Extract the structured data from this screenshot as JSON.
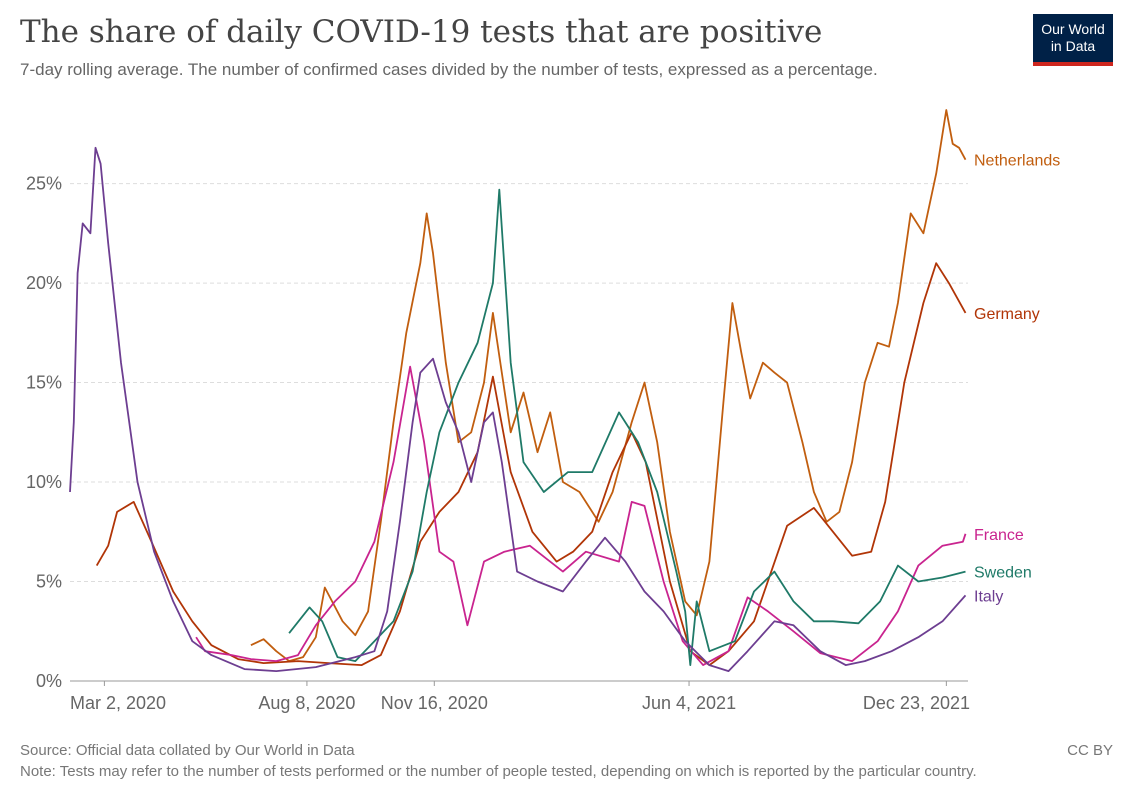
{
  "header": {
    "title": "The share of daily COVID-19 tests that are positive",
    "subtitle": "7-day rolling average. The number of confirmed cases divided by the number of tests, expressed as a percentage."
  },
  "logo": {
    "line1": "Our World",
    "line2": "in Data",
    "bg": "#002147",
    "accent": "#ce261e"
  },
  "footer": {
    "source": "Source: Official data collated by Our World in Data",
    "note": "Note: Tests may refer to the number of tests performed or the number of people tested, depending on which is reported by the particular country.",
    "license": "CC BY"
  },
  "chart_data": {
    "type": "line",
    "title": "The share of daily COVID-19 tests that are positive",
    "xlabel": "",
    "ylabel": "",
    "x_range": [
      "2020-02-04",
      "2022-01-09"
    ],
    "ylim": [
      0,
      29
    ],
    "y_ticks": [
      0,
      5,
      10,
      15,
      20,
      25
    ],
    "y_tick_labels": [
      "0%",
      "5%",
      "10%",
      "15%",
      "20%",
      "25%"
    ],
    "x_ticks": [
      "2020-03-02",
      "2020-08-08",
      "2020-11-16",
      "2021-06-04",
      "2021-12-23"
    ],
    "x_tick_labels": [
      "Mar 2, 2020",
      "Aug 8, 2020",
      "Nov 16, 2020",
      "Jun 4, 2021",
      "Dec 23, 2021"
    ],
    "grid": true,
    "legend": "inline labels at right end",
    "series": [
      {
        "name": "Netherlands",
        "color": "#c15e0f",
        "points": [
          [
            "2020-06-25",
            1.8
          ],
          [
            "2020-07-05",
            2.1
          ],
          [
            "2020-07-15",
            1.5
          ],
          [
            "2020-07-25",
            1.0
          ],
          [
            "2020-08-05",
            1.2
          ],
          [
            "2020-08-15",
            2.2
          ],
          [
            "2020-08-22",
            4.7
          ],
          [
            "2020-09-05",
            3.0
          ],
          [
            "2020-09-15",
            2.3
          ],
          [
            "2020-09-25",
            3.5
          ],
          [
            "2020-10-05",
            8.0
          ],
          [
            "2020-10-15",
            13.0
          ],
          [
            "2020-10-25",
            17.5
          ],
          [
            "2020-11-05",
            21.0
          ],
          [
            "2020-11-10",
            23.5
          ],
          [
            "2020-11-15",
            21.5
          ],
          [
            "2020-11-25",
            16.0
          ],
          [
            "2020-12-05",
            12.0
          ],
          [
            "2020-12-15",
            12.5
          ],
          [
            "2020-12-25",
            15.0
          ],
          [
            "2021-01-01",
            18.5
          ],
          [
            "2021-01-08",
            15.5
          ],
          [
            "2021-01-15",
            12.5
          ],
          [
            "2021-01-25",
            14.5
          ],
          [
            "2021-02-05",
            11.5
          ],
          [
            "2021-02-15",
            13.5
          ],
          [
            "2021-02-25",
            10.0
          ],
          [
            "2021-03-10",
            9.5
          ],
          [
            "2021-03-25",
            8.0
          ],
          [
            "2021-04-05",
            9.5
          ],
          [
            "2021-04-20",
            13.0
          ],
          [
            "2021-04-30",
            15.0
          ],
          [
            "2021-05-10",
            12.0
          ],
          [
            "2021-05-20",
            7.5
          ],
          [
            "2021-06-01",
            4.0
          ],
          [
            "2021-06-10",
            3.3
          ],
          [
            "2021-06-20",
            6.0
          ],
          [
            "2021-07-01",
            14.0
          ],
          [
            "2021-07-08",
            19.0
          ],
          [
            "2021-07-15",
            16.5
          ],
          [
            "2021-07-22",
            14.2
          ],
          [
            "2021-08-01",
            16.0
          ],
          [
            "2021-08-10",
            15.5
          ],
          [
            "2021-08-20",
            15.0
          ],
          [
            "2021-09-01",
            12.0
          ],
          [
            "2021-09-10",
            9.5
          ],
          [
            "2021-09-20",
            8.0
          ],
          [
            "2021-09-30",
            8.5
          ],
          [
            "2021-10-10",
            11.0
          ],
          [
            "2021-10-20",
            15.0
          ],
          [
            "2021-10-30",
            17.0
          ],
          [
            "2021-11-08",
            16.8
          ],
          [
            "2021-11-15",
            19.0
          ],
          [
            "2021-11-25",
            23.5
          ],
          [
            "2021-12-05",
            22.5
          ],
          [
            "2021-12-15",
            25.5
          ],
          [
            "2021-12-23",
            28.7
          ],
          [
            "2021-12-28",
            27.0
          ],
          [
            "2022-01-02",
            26.8
          ],
          [
            "2022-01-07",
            26.2
          ]
        ]
      },
      {
        "name": "Germany",
        "color": "#b13507",
        "points": [
          [
            "2020-02-25",
            5.8
          ],
          [
            "2020-03-05",
            6.8
          ],
          [
            "2020-03-12",
            8.5
          ],
          [
            "2020-03-25",
            9.0
          ],
          [
            "2020-04-08",
            7.0
          ],
          [
            "2020-04-25",
            4.5
          ],
          [
            "2020-05-10",
            3.0
          ],
          [
            "2020-05-25",
            1.8
          ],
          [
            "2020-06-15",
            1.1
          ],
          [
            "2020-07-05",
            0.9
          ],
          [
            "2020-08-01",
            1.0
          ],
          [
            "2020-08-25",
            0.9
          ],
          [
            "2020-09-20",
            0.8
          ],
          [
            "2020-10-05",
            1.3
          ],
          [
            "2020-10-20",
            3.5
          ],
          [
            "2020-11-05",
            7.0
          ],
          [
            "2020-11-20",
            8.5
          ],
          [
            "2020-12-05",
            9.5
          ],
          [
            "2020-12-20",
            11.5
          ],
          [
            "2021-01-01",
            15.3
          ],
          [
            "2021-01-15",
            10.5
          ],
          [
            "2021-02-01",
            7.5
          ],
          [
            "2021-02-20",
            6.0
          ],
          [
            "2021-03-05",
            6.5
          ],
          [
            "2021-03-20",
            7.5
          ],
          [
            "2021-04-05",
            10.5
          ],
          [
            "2021-04-20",
            12.5
          ],
          [
            "2021-05-01",
            11.0
          ],
          [
            "2021-05-20",
            5.0
          ],
          [
            "2021-06-05",
            1.5
          ],
          [
            "2021-06-20",
            0.8
          ],
          [
            "2021-07-05",
            1.5
          ],
          [
            "2021-07-25",
            3.0
          ],
          [
            "2021-08-20",
            7.8
          ],
          [
            "2021-09-10",
            8.7
          ],
          [
            "2021-09-25",
            7.5
          ],
          [
            "2021-10-10",
            6.3
          ],
          [
            "2021-10-25",
            6.5
          ],
          [
            "2021-11-05",
            9.0
          ],
          [
            "2021-11-20",
            15.0
          ],
          [
            "2021-12-05",
            19.0
          ],
          [
            "2021-12-15",
            21.0
          ],
          [
            "2021-12-25",
            20.0
          ],
          [
            "2022-01-07",
            18.5
          ]
        ]
      },
      {
        "name": "France",
        "color": "#c9248f",
        "points": [
          [
            "2020-05-13",
            2.2
          ],
          [
            "2020-05-20",
            1.5
          ],
          [
            "2020-06-10",
            1.3
          ],
          [
            "2020-06-25",
            1.1
          ],
          [
            "2020-07-15",
            1.0
          ],
          [
            "2020-08-01",
            1.3
          ],
          [
            "2020-08-15",
            2.8
          ],
          [
            "2020-08-30",
            4.0
          ],
          [
            "2020-09-15",
            5.0
          ],
          [
            "2020-09-30",
            7.0
          ],
          [
            "2020-10-15",
            11.0
          ],
          [
            "2020-10-28",
            15.8
          ],
          [
            "2020-11-08",
            12.0
          ],
          [
            "2020-11-20",
            6.5
          ],
          [
            "2020-12-01",
            6.0
          ],
          [
            "2020-12-12",
            2.8
          ],
          [
            "2020-12-25",
            6.0
          ],
          [
            "2021-01-10",
            6.5
          ],
          [
            "2021-01-30",
            6.8
          ],
          [
            "2021-02-25",
            5.5
          ],
          [
            "2021-03-15",
            6.5
          ],
          [
            "2021-04-10",
            6.0
          ],
          [
            "2021-04-20",
            9.0
          ],
          [
            "2021-04-30",
            8.8
          ],
          [
            "2021-05-15",
            5.0
          ],
          [
            "2021-05-30",
            2.0
          ],
          [
            "2021-06-15",
            0.8
          ],
          [
            "2021-07-05",
            1.5
          ],
          [
            "2021-07-20",
            4.2
          ],
          [
            "2021-08-05",
            3.5
          ],
          [
            "2021-08-25",
            2.5
          ],
          [
            "2021-09-15",
            1.4
          ],
          [
            "2021-10-10",
            1.0
          ],
          [
            "2021-10-30",
            2.0
          ],
          [
            "2021-11-15",
            3.5
          ],
          [
            "2021-12-01",
            5.8
          ],
          [
            "2021-12-20",
            6.8
          ],
          [
            "2022-01-05",
            7.0
          ],
          [
            "2022-01-07",
            7.4
          ]
        ]
      },
      {
        "name": "Sweden",
        "color": "#1f7a68",
        "points": [
          [
            "2020-07-25",
            2.4
          ],
          [
            "2020-08-10",
            3.7
          ],
          [
            "2020-08-20",
            3.0
          ],
          [
            "2020-09-01",
            1.2
          ],
          [
            "2020-09-15",
            1.0
          ],
          [
            "2020-09-30",
            2.0
          ],
          [
            "2020-10-15",
            3.0
          ],
          [
            "2020-10-30",
            5.5
          ],
          [
            "2020-11-10",
            9.5
          ],
          [
            "2020-11-20",
            12.5
          ],
          [
            "2020-12-05",
            15.0
          ],
          [
            "2020-12-20",
            17.0
          ],
          [
            "2021-01-01",
            20.0
          ],
          [
            "2021-01-06",
            24.7
          ],
          [
            "2021-01-15",
            16.0
          ],
          [
            "2021-01-25",
            11.0
          ],
          [
            "2021-02-10",
            9.5
          ],
          [
            "2021-03-01",
            10.5
          ],
          [
            "2021-03-20",
            10.5
          ],
          [
            "2021-04-10",
            13.5
          ],
          [
            "2021-04-25",
            12.0
          ],
          [
            "2021-05-10",
            9.5
          ],
          [
            "2021-05-25",
            5.5
          ],
          [
            "2021-06-01",
            3.5
          ],
          [
            "2021-06-05",
            0.8
          ],
          [
            "2021-06-10",
            4.0
          ],
          [
            "2021-06-20",
            1.5
          ],
          [
            "2021-07-10",
            2.0
          ],
          [
            "2021-07-25",
            4.5
          ],
          [
            "2021-08-10",
            5.5
          ],
          [
            "2021-08-25",
            4.0
          ],
          [
            "2021-09-10",
            3.0
          ],
          [
            "2021-09-25",
            3.0
          ],
          [
            "2021-10-15",
            2.9
          ],
          [
            "2021-11-01",
            4.0
          ],
          [
            "2021-11-15",
            5.8
          ],
          [
            "2021-12-01",
            5.0
          ],
          [
            "2021-12-20",
            5.2
          ],
          [
            "2022-01-07",
            5.5
          ]
        ]
      },
      {
        "name": "Italy",
        "color": "#6d3e91",
        "points": [
          [
            "2020-02-04",
            9.5
          ],
          [
            "2020-02-07",
            13.0
          ],
          [
            "2020-02-10",
            20.5
          ],
          [
            "2020-02-14",
            23.0
          ],
          [
            "2020-02-20",
            22.5
          ],
          [
            "2020-02-24",
            26.8
          ],
          [
            "2020-02-28",
            26.0
          ],
          [
            "2020-03-05",
            22.0
          ],
          [
            "2020-03-15",
            16.0
          ],
          [
            "2020-03-28",
            10.0
          ],
          [
            "2020-04-10",
            6.5
          ],
          [
            "2020-04-25",
            4.0
          ],
          [
            "2020-05-10",
            2.0
          ],
          [
            "2020-05-25",
            1.3
          ],
          [
            "2020-06-20",
            0.6
          ],
          [
            "2020-07-15",
            0.5
          ],
          [
            "2020-08-15",
            0.7
          ],
          [
            "2020-09-15",
            1.2
          ],
          [
            "2020-09-30",
            1.5
          ],
          [
            "2020-10-10",
            3.5
          ],
          [
            "2020-10-20",
            8.0
          ],
          [
            "2020-10-30",
            13.0
          ],
          [
            "2020-11-05",
            15.5
          ],
          [
            "2020-11-15",
            16.2
          ],
          [
            "2020-11-25",
            14.0
          ],
          [
            "2020-12-05",
            12.5
          ],
          [
            "2020-12-15",
            10.0
          ],
          [
            "2020-12-25",
            13.0
          ],
          [
            "2021-01-01",
            13.5
          ],
          [
            "2021-01-08",
            11.0
          ],
          [
            "2021-01-20",
            5.5
          ],
          [
            "2021-02-05",
            5.0
          ],
          [
            "2021-02-25",
            4.5
          ],
          [
            "2021-03-15",
            6.0
          ],
          [
            "2021-03-30",
            7.2
          ],
          [
            "2021-04-15",
            6.0
          ],
          [
            "2021-04-30",
            4.5
          ],
          [
            "2021-05-15",
            3.5
          ],
          [
            "2021-06-01",
            2.0
          ],
          [
            "2021-06-20",
            0.8
          ],
          [
            "2021-07-05",
            0.5
          ],
          [
            "2021-07-20",
            1.5
          ],
          [
            "2021-08-10",
            3.0
          ],
          [
            "2021-08-25",
            2.8
          ],
          [
            "2021-09-15",
            1.5
          ],
          [
            "2021-10-05",
            0.8
          ],
          [
            "2021-10-20",
            1.0
          ],
          [
            "2021-11-10",
            1.5
          ],
          [
            "2021-12-01",
            2.2
          ],
          [
            "2021-12-20",
            3.0
          ],
          [
            "2022-01-07",
            4.3
          ]
        ]
      }
    ]
  }
}
